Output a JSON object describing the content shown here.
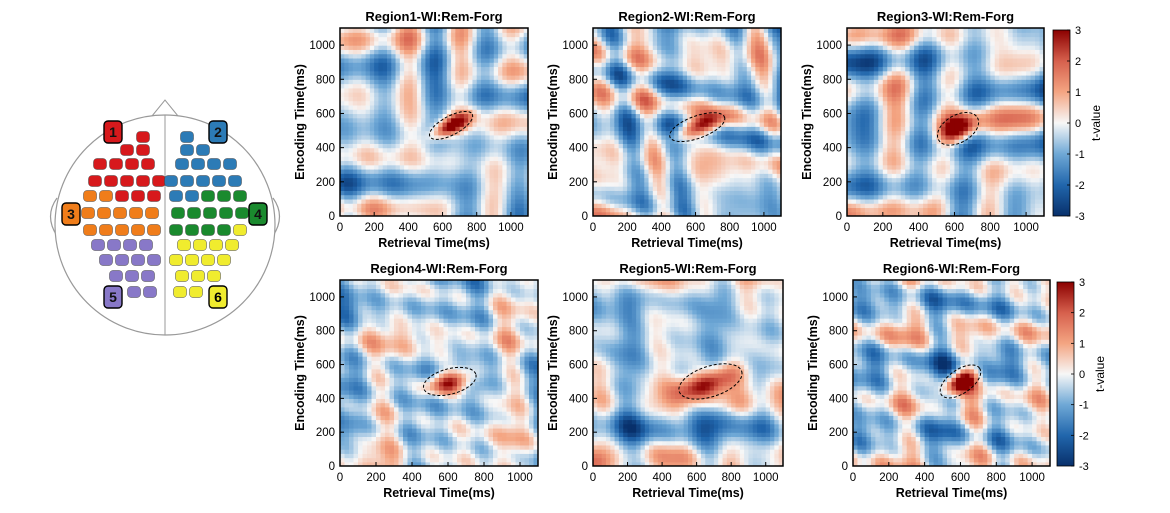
{
  "head_map": {
    "regions": [
      {
        "label": "1",
        "color": "#d7191c"
      },
      {
        "label": "2",
        "color": "#2c7bb6"
      },
      {
        "label": "3",
        "color": "#f07d1a"
      },
      {
        "label": "4",
        "color": "#1a8a2e"
      },
      {
        "label": "5",
        "color": "#8878c8"
      },
      {
        "label": "6",
        "color": "#f0ec2e"
      }
    ]
  },
  "colorbar": {
    "label": "t-value",
    "min": -3,
    "max": 3,
    "ticks": [
      "-3",
      "-2",
      "-1",
      "0",
      "1",
      "2",
      "3"
    ],
    "colors": [
      "#08306b",
      "#2166ac",
      "#6fa8d6",
      "#f7f7f7",
      "#f4a582",
      "#d6604d",
      "#8b0000"
    ]
  },
  "chart_data": [
    {
      "type": "heatmap",
      "title": "Region1-WI:Rem-Forg",
      "xlabel": "Retrieval Time(ms)",
      "ylabel": "Encoding Time(ms)",
      "xlim": [
        0,
        1100
      ],
      "ylim": [
        0,
        1100
      ],
      "xticks": [
        "0",
        "200",
        "400",
        "600",
        "800",
        "1000"
      ],
      "yticks": [
        "0",
        "200",
        "400",
        "600",
        "800",
        "1000"
      ],
      "cluster": {
        "center": [
          650,
          530
        ],
        "radius": [
          140,
          55
        ],
        "angle": -28,
        "t_peak": 3
      }
    },
    {
      "type": "heatmap",
      "title": "Region2-WI:Rem-Forg",
      "xlabel": "Retrieval Time(ms)",
      "ylabel": "Encoding Time(ms)",
      "xlim": [
        0,
        1100
      ],
      "ylim": [
        0,
        1100
      ],
      "xticks": [
        "0",
        "200",
        "400",
        "600",
        "800",
        "1000"
      ],
      "yticks": [
        "0",
        "200",
        "400",
        "600",
        "800",
        "1000"
      ],
      "cluster": {
        "center": [
          610,
          520
        ],
        "radius": [
          170,
          65
        ],
        "angle": -20,
        "t_peak": 3
      }
    },
    {
      "type": "heatmap",
      "title": "Region3-WI:Rem-Forg",
      "xlabel": "Retrieval Time(ms)",
      "ylabel": "Encoding Time(ms)",
      "xlim": [
        0,
        1100
      ],
      "ylim": [
        0,
        1100
      ],
      "xticks": [
        "0",
        "200",
        "400",
        "600",
        "800",
        "1000"
      ],
      "yticks": [
        "0",
        "200",
        "400",
        "600",
        "800",
        "1000"
      ],
      "cluster": {
        "center": [
          620,
          510
        ],
        "radius": [
          125,
          80
        ],
        "angle": -30,
        "t_peak": 3
      }
    },
    {
      "type": "heatmap",
      "title": "Region4-WI:Rem-Forg",
      "xlabel": "Retrieval Time(ms)",
      "ylabel": "Encoding Time(ms)",
      "xlim": [
        0,
        1100
      ],
      "ylim": [
        0,
        1100
      ],
      "xticks": [
        "0",
        "200",
        "400",
        "600",
        "800",
        "1000"
      ],
      "yticks": [
        "0",
        "200",
        "400",
        "600",
        "800",
        "1000"
      ],
      "cluster": {
        "center": [
          610,
          500
        ],
        "radius": [
          150,
          75
        ],
        "angle": -15,
        "t_peak": 3
      }
    },
    {
      "type": "heatmap",
      "title": "Region5-WI:Rem-Forg",
      "xlabel": "Retrieval Time(ms)",
      "ylabel": "Encoding Time(ms)",
      "xlim": [
        0,
        1100
      ],
      "ylim": [
        0,
        1100
      ],
      "xticks": [
        "0",
        "200",
        "400",
        "600",
        "800",
        "1000"
      ],
      "yticks": [
        "0",
        "200",
        "400",
        "600",
        "800",
        "1000"
      ],
      "cluster": {
        "center": [
          680,
          500
        ],
        "radius": [
          190,
          90
        ],
        "angle": -18,
        "t_peak": 3
      }
    },
    {
      "type": "heatmap",
      "title": "Region6-WI:Rem-Forg",
      "xlabel": "Retrieval Time(ms)",
      "ylabel": "Encoding Time(ms)",
      "xlim": [
        0,
        1100
      ],
      "ylim": [
        0,
        1100
      ],
      "xticks": [
        "0",
        "200",
        "400",
        "600",
        "800",
        "1000"
      ],
      "yticks": [
        "0",
        "200",
        "400",
        "600",
        "800",
        "1000"
      ],
      "cluster": {
        "center": [
          600,
          500
        ],
        "radius": [
          130,
          70
        ],
        "angle": -35,
        "t_peak": 3
      }
    }
  ]
}
